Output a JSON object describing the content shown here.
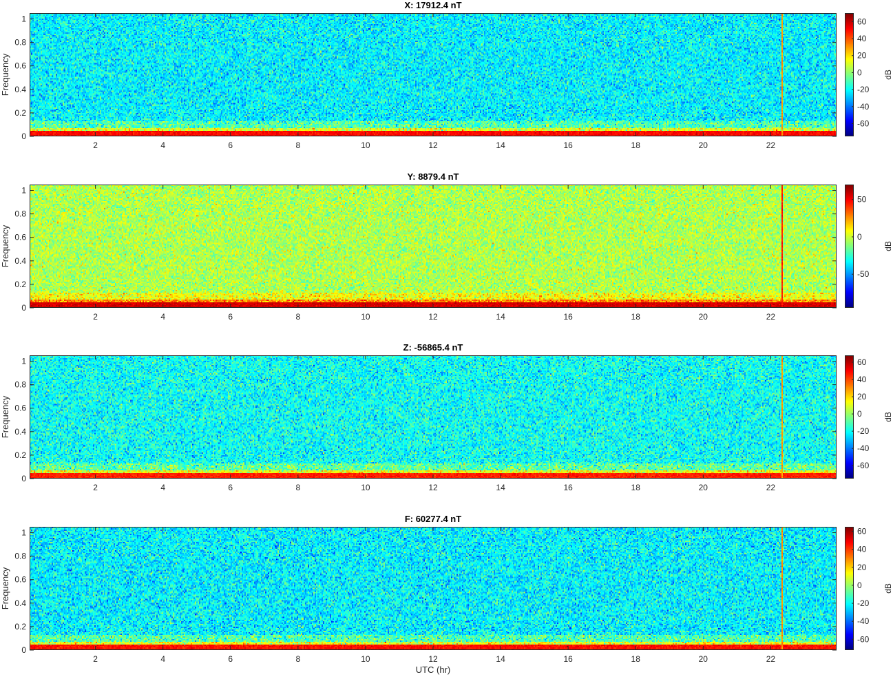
{
  "chart_data": [
    {
      "type": "heatmap",
      "title": "X: 17912.4 nT",
      "ylabel": "Frequency",
      "xlabel": "",
      "xlim": [
        0,
        24
      ],
      "ylim": [
        0,
        1.05
      ],
      "xticks": [
        "2",
        "4",
        "6",
        "8",
        "10",
        "12",
        "14",
        "16",
        "18",
        "20",
        "22"
      ],
      "yticks": [
        "0",
        "0.2",
        "0.4",
        "0.6",
        "0.8",
        "1"
      ],
      "colorbar": {
        "label": "dB",
        "range": [
          -75,
          70
        ],
        "ticks": [
          "-60",
          "-40",
          "-20",
          "0",
          "20",
          "40",
          "60"
        ],
        "tick_values": [
          -60,
          -40,
          -20,
          0,
          20,
          40,
          60
        ]
      },
      "background_level_db": -22,
      "low_frequency_band_db": 45,
      "spike_time_hr": 22.3,
      "spike_level_db": 30
    },
    {
      "type": "heatmap",
      "title": "Y: 8879.4 nT",
      "ylabel": "Frequency",
      "xlabel": "",
      "xlim": [
        0,
        24
      ],
      "ylim": [
        0,
        1.05
      ],
      "xticks": [
        "2",
        "4",
        "6",
        "8",
        "10",
        "12",
        "14",
        "16",
        "18",
        "20",
        "22"
      ],
      "yticks": [
        "0",
        "0.2",
        "0.4",
        "0.6",
        "0.8",
        "1"
      ],
      "colorbar": {
        "label": "dB",
        "range": [
          -95,
          70
        ],
        "ticks": [
          "-50",
          "0",
          "50"
        ],
        "tick_values": [
          -50,
          0,
          50
        ]
      },
      "background_level_db": -5,
      "low_frequency_band_db": 50,
      "spike_time_hr": 22.3,
      "spike_level_db": 45
    },
    {
      "type": "heatmap",
      "title": "Z: -56865.4 nT",
      "ylabel": "Frequency",
      "xlabel": "",
      "xlim": [
        0,
        24
      ],
      "ylim": [
        0,
        1.05
      ],
      "xticks": [
        "2",
        "4",
        "6",
        "8",
        "10",
        "12",
        "14",
        "16",
        "18",
        "20",
        "22"
      ],
      "yticks": [
        "0",
        "0.2",
        "0.4",
        "0.6",
        "0.8",
        "1"
      ],
      "colorbar": {
        "label": "dB",
        "range": [
          -75,
          68
        ],
        "ticks": [
          "-60",
          "-40",
          "-20",
          "0",
          "20",
          "40",
          "60"
        ],
        "tick_values": [
          -60,
          -40,
          -20,
          0,
          20,
          40,
          60
        ]
      },
      "background_level_db": -20,
      "low_frequency_band_db": 40,
      "spike_time_hr": 22.3,
      "spike_level_db": 28
    },
    {
      "type": "heatmap",
      "title": "F: 60277.4 nT",
      "ylabel": "Frequency",
      "xlabel": "UTC (hr)",
      "xlim": [
        0,
        24
      ],
      "ylim": [
        0,
        1.05
      ],
      "xticks": [
        "2",
        "4",
        "6",
        "8",
        "10",
        "12",
        "14",
        "16",
        "18",
        "20",
        "22"
      ],
      "yticks": [
        "0",
        "0.2",
        "0.4",
        "0.6",
        "0.8",
        "1"
      ],
      "colorbar": {
        "label": "dB",
        "range": [
          -72,
          65
        ],
        "ticks": [
          "-60",
          "-40",
          "-20",
          "0",
          "20",
          "40",
          "60"
        ],
        "tick_values": [
          -60,
          -40,
          -20,
          0,
          20,
          40,
          60
        ]
      },
      "background_level_db": -22,
      "low_frequency_band_db": 40,
      "spike_time_hr": 22.3,
      "spike_level_db": 28
    }
  ]
}
